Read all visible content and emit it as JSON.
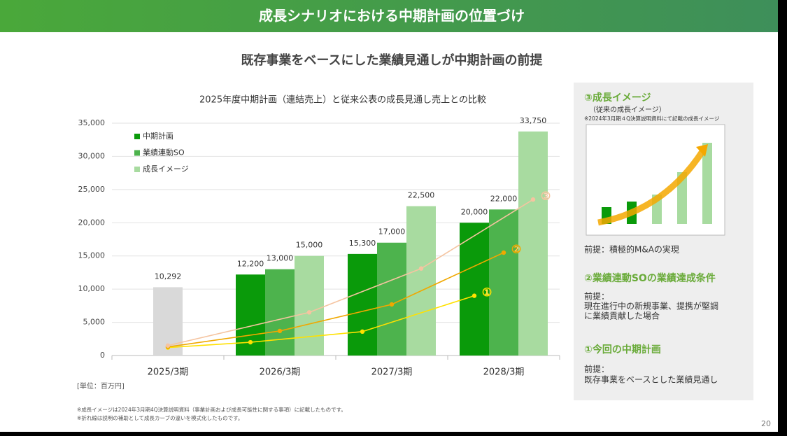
{
  "header": {
    "title": "成長シナリオにおける中期計画の位置づけ"
  },
  "subtitle": "既存事業をベースにした業績見通しが中期計画の前提",
  "chart_data": {
    "type": "bar",
    "title": "2025年度中期計画（連結売上）と従来公表の成長見通し売上との比較",
    "categories": [
      "2025/3期",
      "2026/3期",
      "2027/3期",
      "2028/3期"
    ],
    "series": [
      {
        "name": "中期計画",
        "color": "#0a9a0a",
        "colors": [
          "#d9d9d9",
          "#0a9a0a",
          "#0a9a0a",
          "#0a9a0a"
        ],
        "values": [
          10292,
          12200,
          15300,
          20000
        ],
        "value_labels": [
          "10,292",
          "12,200",
          "15,300",
          "20,000"
        ]
      },
      {
        "name": "業績連動SO",
        "color": "#4db34d",
        "values": [
          null,
          13000,
          17000,
          22000
        ],
        "value_labels": [
          null,
          "13,000",
          "17,000",
          "22,000"
        ]
      },
      {
        "name": "成長イメージ",
        "color": "#a8dba0",
        "values": [
          null,
          15000,
          22500,
          33750
        ],
        "value_labels": [
          null,
          "15,000",
          "22,500",
          "33,750"
        ]
      }
    ],
    "lines": [
      {
        "name": "①",
        "color": "#ffe100",
        "values": [
          1200,
          2000,
          3600,
          9000
        ]
      },
      {
        "name": "②",
        "color": "#f0a800",
        "values": [
          1300,
          3700,
          7700,
          15500
        ]
      },
      {
        "name": "③",
        "color": "#f5c4a0",
        "values": [
          1500,
          6500,
          13100,
          23500
        ]
      }
    ],
    "ylim": [
      0,
      35000
    ],
    "yticks": [
      0,
      {
        "value": 5000,
        "label": "5,000"
      },
      {
        "value": 10000,
        "label": "10,000"
      },
      {
        "value": 15000,
        "label": "15,000"
      },
      {
        "value": 20000,
        "label": "20,000"
      },
      {
        "value": 25000,
        "label": "25,000"
      },
      {
        "value": 30000,
        "label": "30,000"
      },
      {
        "value": 35000,
        "label": "35,000"
      }
    ],
    "grid": true,
    "legend": "top-left",
    "unit_label": "[単位：百万円]",
    "notes": [
      "※成長イメージは2024年3月期4Q決算説明資料（事業計画および成長可能性に関する事項）に記載したものです。",
      "※折れ線は説明の補助として成長カーブの違いを模式化したものです。"
    ]
  },
  "panel": {
    "sections": [
      {
        "heading": "③成長イメージ",
        "subheading": "（従来の成長イメージ）",
        "note": "※2024年3月期４Q決算説明資料にて記載の成長イメージ",
        "lines": [
          "前提：積極的M&Aの実現"
        ]
      },
      {
        "heading": "②業績連動SOの業績達成条件",
        "lines": [
          "前提：",
          "現在進行中の新規事業、提携が堅調",
          "に業績貢献した場合"
        ]
      },
      {
        "heading": "①今回の中期計画",
        "lines": [
          "前提：",
          "既存事業をベースとした業績見通し"
        ]
      }
    ]
  },
  "page_number": "20"
}
